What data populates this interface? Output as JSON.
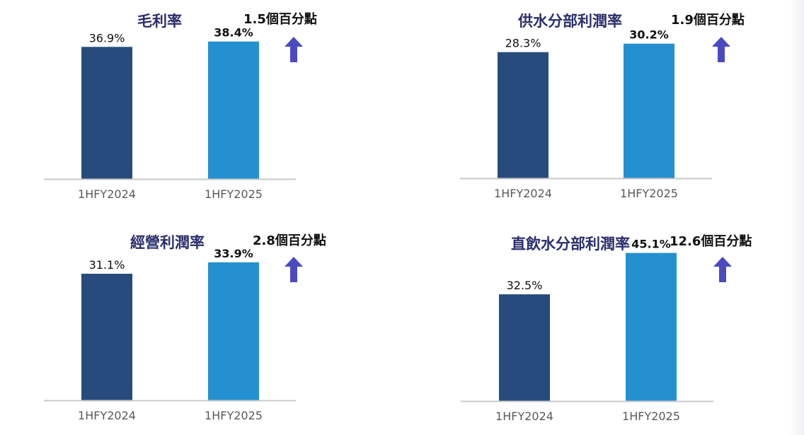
{
  "colors": {
    "bar_2024": "#284b7d",
    "bar_2025": "#2490cf",
    "title": "#2b2f6b",
    "arrow": "#4a4bbf",
    "axis": "#c8c8c8",
    "tick_text": "#595959"
  },
  "icons": {
    "up_arrow": "up-arrow-icon"
  },
  "chart_data": [
    {
      "type": "bar",
      "title": "毛利率",
      "annotation": "1.5個百分點",
      "categories": [
        "1HFY2024",
        "1HFY2025"
      ],
      "values": [
        36.9,
        38.4
      ],
      "labels": [
        "36.9%",
        "38.4%"
      ],
      "ylim": [
        0,
        50
      ],
      "grid": false
    },
    {
      "type": "bar",
      "title": "供水分部利潤率",
      "annotation": "1.9個百分點",
      "categories": [
        "1HFY2024",
        "1HFY2025"
      ],
      "values": [
        28.3,
        30.2
      ],
      "labels": [
        "28.3%",
        "30.2%"
      ],
      "ylim": [
        0,
        40
      ],
      "grid": false
    },
    {
      "type": "bar",
      "title": "經營利潤率",
      "annotation": "2.8個百分點",
      "categories": [
        "1HFY2024",
        "1HFY2025"
      ],
      "values": [
        31.1,
        33.9
      ],
      "labels": [
        "31.1%",
        "33.9%"
      ],
      "ylim": [
        0,
        45
      ],
      "grid": false
    },
    {
      "type": "bar",
      "title": "直飲水分部利潤率",
      "annotation": "12.6個百分點",
      "categories": [
        "1HFY2024",
        "1HFY2025"
      ],
      "values": [
        32.5,
        45.1
      ],
      "labels": [
        "32.5%",
        "45.1%"
      ],
      "ylim": [
        0,
        56
      ],
      "grid": false
    }
  ]
}
